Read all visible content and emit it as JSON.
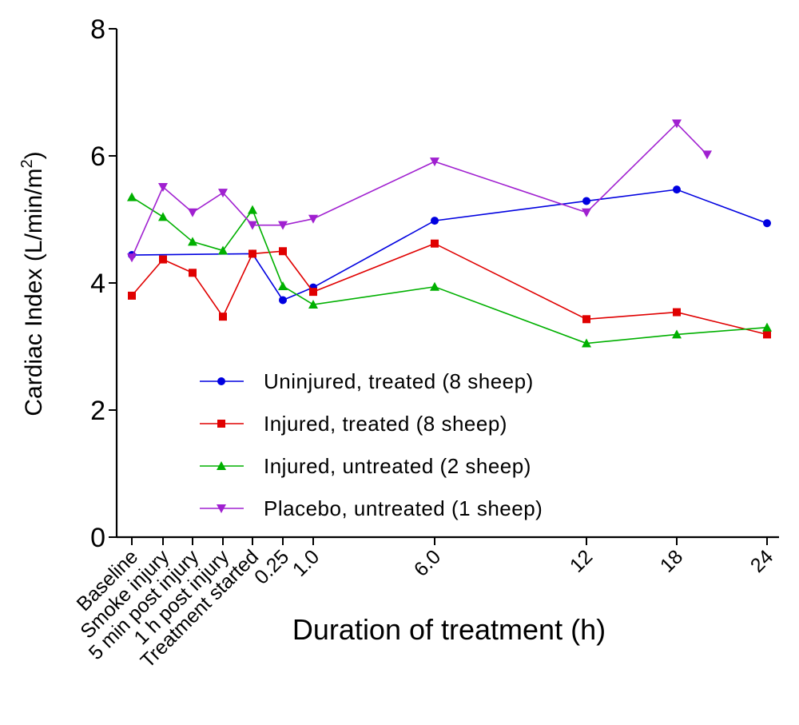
{
  "chart_data": {
    "type": "line",
    "xlabel": "Duration of treatment (h)",
    "ylabel_main": "Cardiac Index (L/min/m",
    "ylabel_sup": "2",
    "ylabel_close": ")",
    "ylim": [
      0,
      8
    ],
    "yticks": [
      "0",
      "2",
      "4",
      "6",
      "8"
    ],
    "categories": [
      "Baseline",
      "Smoke injury",
      "5 min post injury",
      "1 h post injury",
      "Treatment started",
      "0.25",
      "1.0",
      "6.0",
      "12",
      "18",
      "24"
    ],
    "grid": false,
    "legend_position": "center",
    "series": [
      {
        "name": "Uninjured, treated (8 sheep)",
        "color": "#0000e0",
        "marker": "circle",
        "x": [
          "Baseline",
          "Treatment started",
          "0.25",
          "1.0",
          "6.0",
          "12",
          "18",
          "24"
        ],
        "values": [
          4.44,
          4.46,
          3.73,
          3.93,
          4.98,
          5.29,
          5.47,
          4.94
        ]
      },
      {
        "name": "Injured, treated (8 sheep)",
        "color": "#e00000",
        "marker": "square",
        "x": [
          "Baseline",
          "Smoke injury",
          "5 min post injury",
          "1 h post injury",
          "Treatment started",
          "0.25",
          "1.0",
          "6.0",
          "12",
          "18",
          "24"
        ],
        "values": [
          3.8,
          4.37,
          4.16,
          3.47,
          4.46,
          4.5,
          3.86,
          4.62,
          3.43,
          3.54,
          3.19
        ]
      },
      {
        "name": "Injured, untreated (2 sheep)",
        "color": "#00b000",
        "marker": "triangle-up",
        "x": [
          "Baseline",
          "Smoke injury",
          "5 min post injury",
          "1 h post injury",
          "Treatment started",
          "0.25",
          "1.0",
          "6.0",
          "12",
          "18",
          "24"
        ],
        "values": [
          5.35,
          5.04,
          4.65,
          4.51,
          5.15,
          3.95,
          3.66,
          3.94,
          3.05,
          3.19,
          3.3
        ]
      },
      {
        "name": "Placebo, untreated (1 sheep)",
        "color": "#a020d0",
        "marker": "triangle-down",
        "x": [
          "Baseline",
          "Smoke injury",
          "5 min post injury",
          "1 h post injury",
          "Treatment started",
          "0.25",
          "1.0",
          "6.0",
          "12",
          "18",
          "20"
        ],
        "values": [
          4.4,
          5.51,
          5.11,
          5.42,
          4.91,
          4.91,
          5.01,
          5.91,
          5.11,
          6.51,
          6.02
        ]
      }
    ]
  }
}
